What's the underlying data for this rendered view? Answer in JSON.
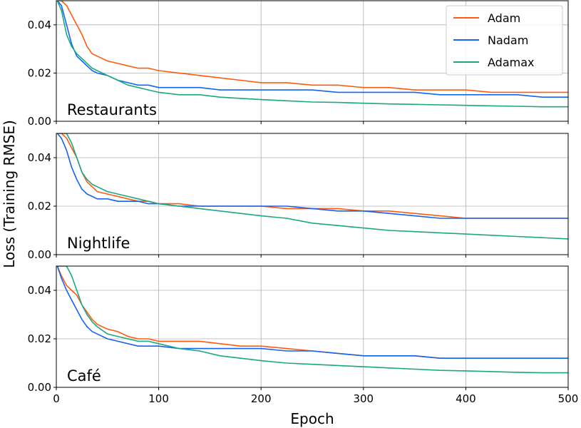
{
  "chart_data": {
    "type": "line",
    "xlabel": "Epoch",
    "ylabel": "Loss (Training RMSE)",
    "xlim": [
      0,
      500
    ],
    "ylim": [
      0,
      0.05
    ],
    "xticks": [
      "0",
      "100",
      "200",
      "300",
      "400",
      "500"
    ],
    "yticks": [
      "0.00",
      "0.02",
      "0.04"
    ],
    "grid": true,
    "legend": {
      "placement": "top-right",
      "entries": [
        "Adam",
        "Nadam",
        "Adamax"
      ]
    },
    "colors": {
      "Adam": "#ff5a10",
      "Nadam": "#1464f0",
      "Adamax": "#1aa882"
    },
    "x": [
      1,
      5,
      10,
      15,
      20,
      25,
      30,
      35,
      40,
      50,
      60,
      70,
      80,
      90,
      100,
      120,
      140,
      160,
      180,
      200,
      225,
      250,
      275,
      300,
      325,
      350,
      375,
      400,
      425,
      450,
      475,
      500
    ],
    "panels": [
      {
        "label": "Restaurants",
        "series": [
          {
            "name": "Adam",
            "values": [
              0.05,
              0.05,
              0.048,
              0.044,
              0.04,
              0.036,
              0.031,
              0.028,
              0.027,
              0.025,
              0.024,
              0.023,
              0.022,
              0.022,
              0.021,
              0.02,
              0.019,
              0.018,
              0.017,
              0.016,
              0.016,
              0.015,
              0.015,
              0.014,
              0.014,
              0.013,
              0.013,
              0.013,
              0.012,
              0.012,
              0.012,
              0.012
            ]
          },
          {
            "name": "Nadam",
            "values": [
              0.05,
              0.048,
              0.04,
              0.032,
              0.027,
              0.025,
              0.023,
              0.021,
              0.02,
              0.019,
              0.017,
              0.016,
              0.015,
              0.015,
              0.014,
              0.014,
              0.014,
              0.013,
              0.013,
              0.013,
              0.013,
              0.013,
              0.012,
              0.012,
              0.012,
              0.012,
              0.011,
              0.011,
              0.011,
              0.011,
              0.01,
              0.01
            ]
          },
          {
            "name": "Adamax",
            "values": [
              0.05,
              0.046,
              0.036,
              0.031,
              0.028,
              0.026,
              0.024,
              0.022,
              0.021,
              0.019,
              0.017,
              0.015,
              0.014,
              0.013,
              0.012,
              0.011,
              0.011,
              0.01,
              0.0095,
              0.009,
              0.0085,
              0.008,
              0.0078,
              0.0075,
              0.0072,
              0.007,
              0.0068,
              0.0066,
              0.0064,
              0.0062,
              0.006,
              0.006
            ]
          }
        ]
      },
      {
        "label": "Nightlife",
        "series": [
          {
            "name": "Adam",
            "values": [
              0.05,
              0.05,
              0.048,
              0.044,
              0.04,
              0.034,
              0.03,
              0.028,
              0.026,
              0.025,
              0.024,
              0.023,
              0.022,
              0.022,
              0.021,
              0.021,
              0.02,
              0.02,
              0.02,
              0.02,
              0.019,
              0.019,
              0.019,
              0.018,
              0.018,
              0.017,
              0.016,
              0.015,
              0.015,
              0.015,
              0.015,
              0.015
            ]
          },
          {
            "name": "Nadam",
            "values": [
              0.05,
              0.048,
              0.043,
              0.036,
              0.031,
              0.027,
              0.025,
              0.024,
              0.023,
              0.023,
              0.022,
              0.022,
              0.022,
              0.021,
              0.021,
              0.02,
              0.02,
              0.02,
              0.02,
              0.02,
              0.02,
              0.019,
              0.018,
              0.018,
              0.017,
              0.016,
              0.015,
              0.015,
              0.015,
              0.015,
              0.015,
              0.015
            ]
          },
          {
            "name": "Adamax",
            "values": [
              0.05,
              0.05,
              0.05,
              0.046,
              0.04,
              0.034,
              0.031,
              0.029,
              0.028,
              0.026,
              0.025,
              0.024,
              0.023,
              0.022,
              0.021,
              0.02,
              0.019,
              0.018,
              0.017,
              0.016,
              0.015,
              0.013,
              0.012,
              0.011,
              0.01,
              0.0095,
              0.009,
              0.0085,
              0.008,
              0.0075,
              0.007,
              0.0065
            ]
          }
        ]
      },
      {
        "label": "Café",
        "series": [
          {
            "name": "Adam",
            "values": [
              0.05,
              0.046,
              0.042,
              0.04,
              0.038,
              0.034,
              0.031,
              0.028,
              0.026,
              0.024,
              0.023,
              0.021,
              0.02,
              0.02,
              0.019,
              0.019,
              0.019,
              0.018,
              0.017,
              0.017,
              0.016,
              0.015,
              0.014,
              0.013,
              0.013,
              0.013,
              0.012,
              0.012,
              0.012,
              0.012,
              0.012,
              0.012
            ]
          },
          {
            "name": "Nadam",
            "values": [
              0.05,
              0.045,
              0.04,
              0.036,
              0.032,
              0.028,
              0.025,
              0.023,
              0.022,
              0.02,
              0.019,
              0.018,
              0.017,
              0.017,
              0.017,
              0.016,
              0.016,
              0.016,
              0.016,
              0.016,
              0.015,
              0.015,
              0.014,
              0.013,
              0.013,
              0.013,
              0.012,
              0.012,
              0.012,
              0.012,
              0.012,
              0.012
            ]
          },
          {
            "name": "Adamax",
            "values": [
              0.05,
              0.05,
              0.05,
              0.046,
              0.04,
              0.034,
              0.03,
              0.027,
              0.025,
              0.022,
              0.021,
              0.02,
              0.019,
              0.019,
              0.018,
              0.016,
              0.015,
              0.013,
              0.012,
              0.011,
              0.01,
              0.0095,
              0.009,
              0.0085,
              0.008,
              0.0075,
              0.007,
              0.0068,
              0.0065,
              0.0062,
              0.006,
              0.006
            ]
          }
        ]
      }
    ]
  }
}
